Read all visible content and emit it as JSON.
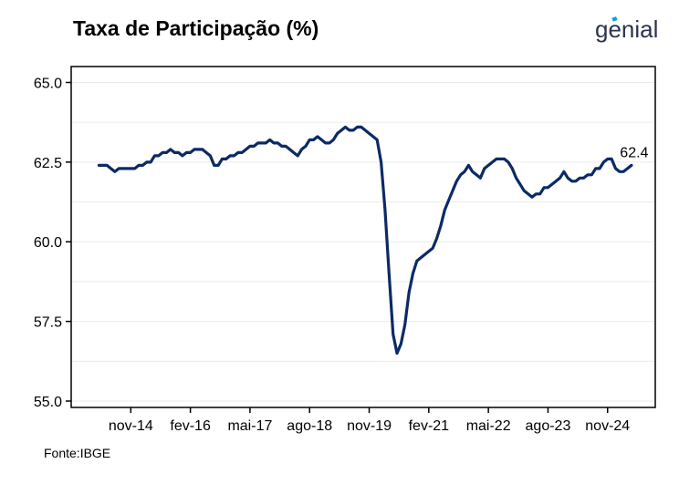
{
  "header": {
    "title": "Taxa de Participação (%)",
    "logo_text": "genial"
  },
  "footer": {
    "source": "Fonte:IBGE"
  },
  "colors": {
    "line": "#0b2a66",
    "grid": "#ebebeb",
    "axis": "#000000"
  },
  "chart_data": {
    "type": "line",
    "title": "Taxa de Participação (%)",
    "xlabel": "",
    "ylabel": "",
    "ylim": [
      54.8,
      65.5
    ],
    "y_ticks": [
      55.0,
      57.5,
      60.0,
      62.5,
      65.0
    ],
    "y_tick_labels": [
      "55.0",
      "57.5",
      "60.0",
      "62.5",
      "65.0"
    ],
    "x_ticks": [
      "2014-11",
      "2016-02",
      "2017-05",
      "2018-08",
      "2019-11",
      "2021-02",
      "2022-05",
      "2023-08",
      "2024-11"
    ],
    "x_tick_labels": [
      "nov-14",
      "fev-16",
      "mai-17",
      "ago-18",
      "nov-19",
      "fev-21",
      "mai-22",
      "ago-23",
      "nov-24"
    ],
    "grid": "horizontal",
    "end_label": "62.4",
    "series": [
      {
        "x": [
          "2014-03",
          "2014-04",
          "2014-05",
          "2014-06",
          "2014-07",
          "2014-08",
          "2014-09",
          "2014-10",
          "2014-11",
          "2014-12",
          "2015-01",
          "2015-02",
          "2015-03",
          "2015-04",
          "2015-05",
          "2015-06",
          "2015-07",
          "2015-08",
          "2015-09",
          "2015-10",
          "2015-11",
          "2015-12",
          "2016-01",
          "2016-02",
          "2016-03",
          "2016-04",
          "2016-05",
          "2016-06",
          "2016-07",
          "2016-08",
          "2016-09",
          "2016-10",
          "2016-11",
          "2016-12",
          "2017-01",
          "2017-02",
          "2017-03",
          "2017-04",
          "2017-05",
          "2017-06",
          "2017-07",
          "2017-08",
          "2017-09",
          "2017-10",
          "2017-11",
          "2017-12",
          "2018-01",
          "2018-02",
          "2018-03",
          "2018-04",
          "2018-05",
          "2018-06",
          "2018-07",
          "2018-08",
          "2018-09",
          "2018-10",
          "2018-11",
          "2018-12",
          "2019-01",
          "2019-02",
          "2019-03",
          "2019-04",
          "2019-05",
          "2019-06",
          "2019-07",
          "2019-08",
          "2019-09",
          "2019-10",
          "2019-11",
          "2019-12",
          "2020-01",
          "2020-02",
          "2020-03",
          "2020-04",
          "2020-05",
          "2020-06",
          "2020-07",
          "2020-08",
          "2020-09",
          "2020-10",
          "2020-11",
          "2020-12",
          "2021-01",
          "2021-02",
          "2021-03",
          "2021-04",
          "2021-05",
          "2021-06",
          "2021-07",
          "2021-08",
          "2021-09",
          "2021-10",
          "2021-11",
          "2021-12",
          "2022-01",
          "2022-02",
          "2022-03",
          "2022-04",
          "2022-05",
          "2022-06",
          "2022-07",
          "2022-08",
          "2022-09",
          "2022-10",
          "2022-11",
          "2022-12",
          "2023-01",
          "2023-02",
          "2023-03",
          "2023-04",
          "2023-05",
          "2023-06",
          "2023-07",
          "2023-08",
          "2023-09",
          "2023-10",
          "2023-11",
          "2023-12",
          "2024-01",
          "2024-02",
          "2024-03",
          "2024-04",
          "2024-05",
          "2024-06",
          "2024-07",
          "2024-08",
          "2024-09",
          "2024-10",
          "2024-11",
          "2024-12",
          "2025-01",
          "2025-02",
          "2025-03",
          "2025-04",
          "2025-05"
        ],
        "values": [
          62.4,
          62.4,
          62.4,
          62.3,
          62.2,
          62.3,
          62.3,
          62.3,
          62.3,
          62.3,
          62.4,
          62.4,
          62.5,
          62.5,
          62.7,
          62.7,
          62.8,
          62.8,
          62.9,
          62.8,
          62.8,
          62.7,
          62.8,
          62.8,
          62.9,
          62.9,
          62.9,
          62.8,
          62.7,
          62.4,
          62.4,
          62.6,
          62.6,
          62.7,
          62.7,
          62.8,
          62.8,
          62.9,
          63.0,
          63.0,
          63.1,
          63.1,
          63.1,
          63.2,
          63.1,
          63.1,
          63.0,
          63.0,
          62.9,
          62.8,
          62.7,
          62.9,
          63.0,
          63.2,
          63.2,
          63.3,
          63.2,
          63.1,
          63.1,
          63.2,
          63.4,
          63.5,
          63.6,
          63.5,
          63.5,
          63.6,
          63.6,
          63.5,
          63.4,
          63.3,
          63.2,
          62.5,
          61.0,
          59.0,
          57.1,
          56.5,
          56.8,
          57.4,
          58.4,
          59.0,
          59.4,
          59.5,
          59.6,
          59.7,
          59.8,
          60.1,
          60.5,
          61.0,
          61.3,
          61.6,
          61.9,
          62.1,
          62.2,
          62.4,
          62.2,
          62.1,
          62.0,
          62.3,
          62.4,
          62.5,
          62.6,
          62.6,
          62.6,
          62.5,
          62.3,
          62.0,
          61.8,
          61.6,
          61.5,
          61.4,
          61.5,
          61.5,
          61.7,
          61.7,
          61.8,
          61.9,
          62.0,
          62.2,
          62.0,
          61.9,
          61.9,
          62.0,
          62.0,
          62.1,
          62.1,
          62.3,
          62.3,
          62.5,
          62.6,
          62.6,
          62.3,
          62.2,
          62.2,
          62.3,
          62.4
        ]
      }
    ]
  }
}
